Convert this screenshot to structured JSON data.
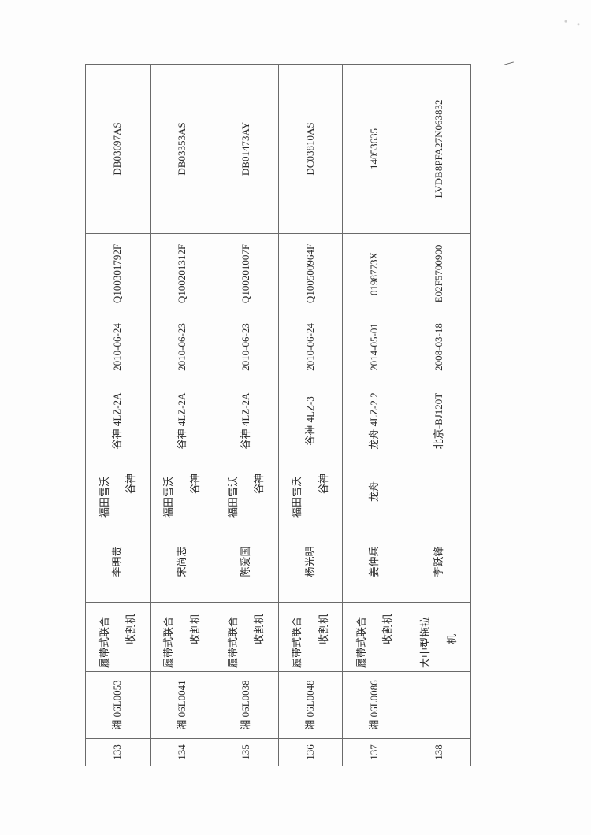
{
  "rows": [
    {
      "no": "133",
      "plate": "湘 06L0053",
      "type": [
        "履带式联合",
        "收割机"
      ],
      "owner": "李明贵",
      "brand": [
        "福田雷沃",
        "谷神"
      ],
      "model": "谷神 4LZ-2A",
      "date": "2010-06-24",
      "engine": "Q100301792F",
      "chassis": "DB03697AS"
    },
    {
      "no": "134",
      "plate": "湘 06L0041",
      "type": [
        "履带式联合",
        "收割机"
      ],
      "owner": "宋尚志",
      "brand": [
        "福田雷沃",
        "谷神"
      ],
      "model": "谷神 4LZ-2A",
      "date": "2010-06-23",
      "engine": "Q100201312F",
      "chassis": "DB03353AS"
    },
    {
      "no": "135",
      "plate": "湘 06L0038",
      "type": [
        "履带式联合",
        "收割机"
      ],
      "owner": "陈爱国",
      "brand": [
        "福田雷沃",
        "谷神"
      ],
      "model": "谷神 4LZ-2A",
      "date": "2010-06-23",
      "engine": "Q100201007F",
      "chassis": "DB01473AY"
    },
    {
      "no": "136",
      "plate": "湘 06L0048",
      "type": [
        "履带式联合",
        "收割机"
      ],
      "owner": "杨光明",
      "brand": [
        "福田雷沃",
        "谷神"
      ],
      "model": "谷神 4LZ-3",
      "date": "2010-06-24",
      "engine": "Q100500964F",
      "chassis": "DC03810AS"
    },
    {
      "no": "137",
      "plate": "湘 06L0086",
      "type": [
        "履带式联合",
        "收割机"
      ],
      "owner": "姜仲兵",
      "brand": [
        "龙舟",
        ""
      ],
      "model": "龙舟 4LZ-2.2",
      "date": "2014-05-01",
      "engine": "0198773X",
      "chassis": "14053635"
    },
    {
      "no": "138",
      "plate": "",
      "type": [
        "大中型拖拉",
        "机"
      ],
      "owner": "李跃锋",
      "brand": [
        "",
        ""
      ],
      "model": "北京-BJ120T",
      "date": "2008-03-18",
      "engine": "E02F5700900",
      "chassis": "LVDB8PFA27N063832"
    }
  ]
}
